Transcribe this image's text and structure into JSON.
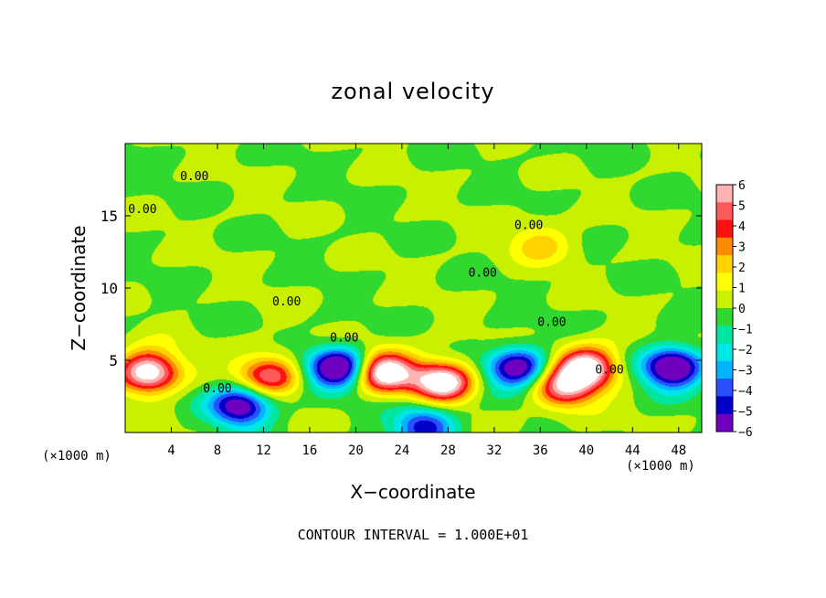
{
  "chart_data": {
    "type": "heatmap",
    "title": "zonal velocity",
    "xlabel": "X−coordinate",
    "ylabel": "Z−coordinate",
    "x_unit": "(×1000 m)",
    "y_unit": "(×1000 m)",
    "xlim": [
      0,
      50
    ],
    "ylim": [
      0,
      20
    ],
    "x_ticks": [
      4,
      8,
      12,
      16,
      20,
      24,
      28,
      32,
      36,
      40,
      44,
      48
    ],
    "y_ticks": [
      5,
      10,
      15
    ],
    "colorbar": {
      "ticks": [
        6,
        5,
        4,
        3,
        2,
        1,
        0,
        -1,
        -2,
        -3,
        -4,
        -5,
        -6
      ],
      "colors": [
        "#ffb4b4",
        "#ff5a5a",
        "#ff1010",
        "#ff8c00",
        "#ffd200",
        "#ffff00",
        "#c8f000",
        "#30d830",
        "#00e6a0",
        "#00e6e6",
        "#00b4ff",
        "#2850ff",
        "#0000c8",
        "#7000c0"
      ]
    },
    "contour_label": "0.00",
    "contour_label_positions": [
      [
        6,
        17.8
      ],
      [
        1.5,
        15.5
      ],
      [
        35,
        14.4
      ],
      [
        31,
        11.1
      ],
      [
        14,
        9.1
      ],
      [
        19,
        6.6
      ],
      [
        37,
        7.7
      ],
      [
        42,
        4.4
      ],
      [
        8,
        3.1
      ]
    ],
    "features": [
      {
        "kind": "positive",
        "x": 2,
        "y": 4.2,
        "value": 6
      },
      {
        "kind": "positive",
        "x": 22.5,
        "y": 4.2,
        "value": 6
      },
      {
        "kind": "positive",
        "x": 27.5,
        "y": 3.5,
        "value": 6
      },
      {
        "kind": "positive",
        "x": 40,
        "y": 4.5,
        "value": 6
      },
      {
        "kind": "positive",
        "x": 12.5,
        "y": 4.0,
        "value": 4
      },
      {
        "kind": "positive",
        "x": 38,
        "y": 3.0,
        "value": 4
      },
      {
        "kind": "positive",
        "x": 36,
        "y": 13,
        "value": 3
      },
      {
        "kind": "negative",
        "x": 18.5,
        "y": 4.5,
        "value": -6
      },
      {
        "kind": "negative",
        "x": 47.5,
        "y": 4.5,
        "value": -6
      },
      {
        "kind": "negative",
        "x": 34,
        "y": 4.5,
        "value": -5
      },
      {
        "kind": "negative",
        "x": 10,
        "y": 1.8,
        "value": -5
      },
      {
        "kind": "negative",
        "x": 26,
        "y": 0.5,
        "value": -4
      }
    ],
    "footer": "CONTOUR INTERVAL = 1.000E+01"
  }
}
